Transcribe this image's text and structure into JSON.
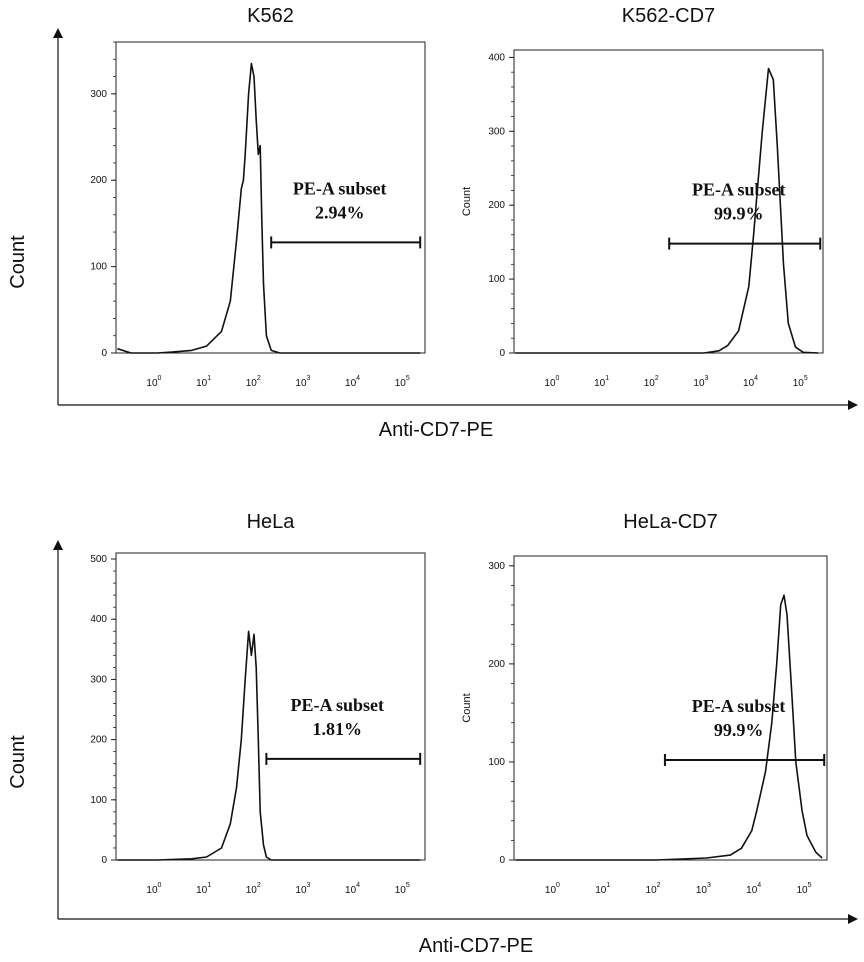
{
  "figure": {
    "axis_label_x_top": "Anti-CD7-PE",
    "axis_label_x_bottom": "Anti-CD7-PE",
    "axis_label_y_top": "Count",
    "axis_label_y_bottom": "Count"
  },
  "chart_data": [
    {
      "type": "line",
      "title": "K562",
      "xlabel": "Anti-CD7-PE",
      "ylabel": "",
      "x_scale": "log",
      "xlim": [
        0.15,
        250000
      ],
      "ylim": [
        0,
        360
      ],
      "yticks": [
        0,
        100,
        200,
        300
      ],
      "xticks": [
        1,
        10,
        100,
        1000,
        10000,
        100000
      ],
      "x": [
        0.16,
        0.3,
        0.5,
        1,
        2,
        5,
        10,
        20,
        30,
        40,
        50,
        55,
        60,
        70,
        80,
        90,
        100,
        110,
        120,
        130,
        140,
        160,
        200,
        300,
        1000,
        10000,
        200000
      ],
      "y": [
        5,
        0,
        0,
        0,
        1,
        3,
        8,
        25,
        60,
        130,
        190,
        200,
        230,
        300,
        335,
        320,
        270,
        230,
        240,
        150,
        80,
        20,
        3,
        0,
        0,
        0,
        0
      ],
      "gate": {
        "label": "PE-A subset",
        "percent": "2.94%",
        "range": [
          200,
          200000
        ],
        "y": 128
      }
    },
    {
      "type": "line",
      "title": "K562-CD7",
      "xlabel": "Anti-CD7-PE",
      "ylabel": "Count",
      "x_scale": "log",
      "xlim": [
        0.15,
        250000
      ],
      "ylim": [
        0,
        410
      ],
      "yticks": [
        0,
        100,
        200,
        300,
        400
      ],
      "xticks": [
        1,
        10,
        100,
        1000,
        10000,
        100000
      ],
      "x": [
        0.16,
        1,
        100,
        1000,
        2000,
        3000,
        5000,
        8000,
        10000,
        15000,
        20000,
        25000,
        30000,
        40000,
        50000,
        70000,
        100000,
        200000
      ],
      "y": [
        0,
        0,
        0,
        0,
        3,
        10,
        30,
        90,
        160,
        300,
        385,
        370,
        280,
        120,
        40,
        8,
        1,
        0
      ],
      "gate": {
        "label": "PE-A subset",
        "percent": "99.9%",
        "range": [
          200,
          220000
        ],
        "y": 148
      }
    },
    {
      "type": "line",
      "title": "HeLa",
      "xlabel": "Anti-CD7-PE",
      "ylabel": "",
      "x_scale": "log",
      "xlim": [
        0.15,
        250000
      ],
      "ylim": [
        0,
        510
      ],
      "yticks": [
        0,
        100,
        200,
        300,
        400,
        500
      ],
      "xticks": [
        1,
        10,
        100,
        1000,
        10000,
        100000
      ],
      "x": [
        0.16,
        1,
        5,
        10,
        20,
        30,
        40,
        50,
        60,
        70,
        75,
        80,
        90,
        100,
        110,
        120,
        140,
        160,
        200,
        300,
        200000
      ],
      "y": [
        0,
        0,
        2,
        5,
        20,
        60,
        120,
        200,
        300,
        380,
        360,
        340,
        375,
        320,
        200,
        80,
        25,
        5,
        0,
        0,
        0
      ],
      "gate": {
        "label": "PE-A subset",
        "percent": "1.81%",
        "range": [
          160,
          200000
        ],
        "y": 168
      }
    },
    {
      "type": "line",
      "title": "HeLa-CD7",
      "xlabel": "Anti-CD7-PE",
      "ylabel": "Count",
      "x_scale": "log",
      "xlim": [
        0.15,
        250000
      ],
      "ylim": [
        0,
        310
      ],
      "yticks": [
        0,
        100,
        200,
        300
      ],
      "xticks": [
        1,
        10,
        100,
        1000,
        10000,
        100000
      ],
      "x": [
        0.16,
        1,
        100,
        1000,
        3000,
        5000,
        8000,
        10000,
        15000,
        20000,
        25000,
        30000,
        35000,
        40000,
        50000,
        60000,
        80000,
        100000,
        150000,
        200000
      ],
      "y": [
        0,
        0,
        0,
        2,
        5,
        12,
        30,
        50,
        90,
        140,
        200,
        260,
        270,
        250,
        170,
        100,
        50,
        25,
        8,
        2
      ],
      "gate": {
        "label": "PE-A subset",
        "percent": "99.9%",
        "range": [
          150,
          220000
        ],
        "y": 102
      }
    }
  ]
}
